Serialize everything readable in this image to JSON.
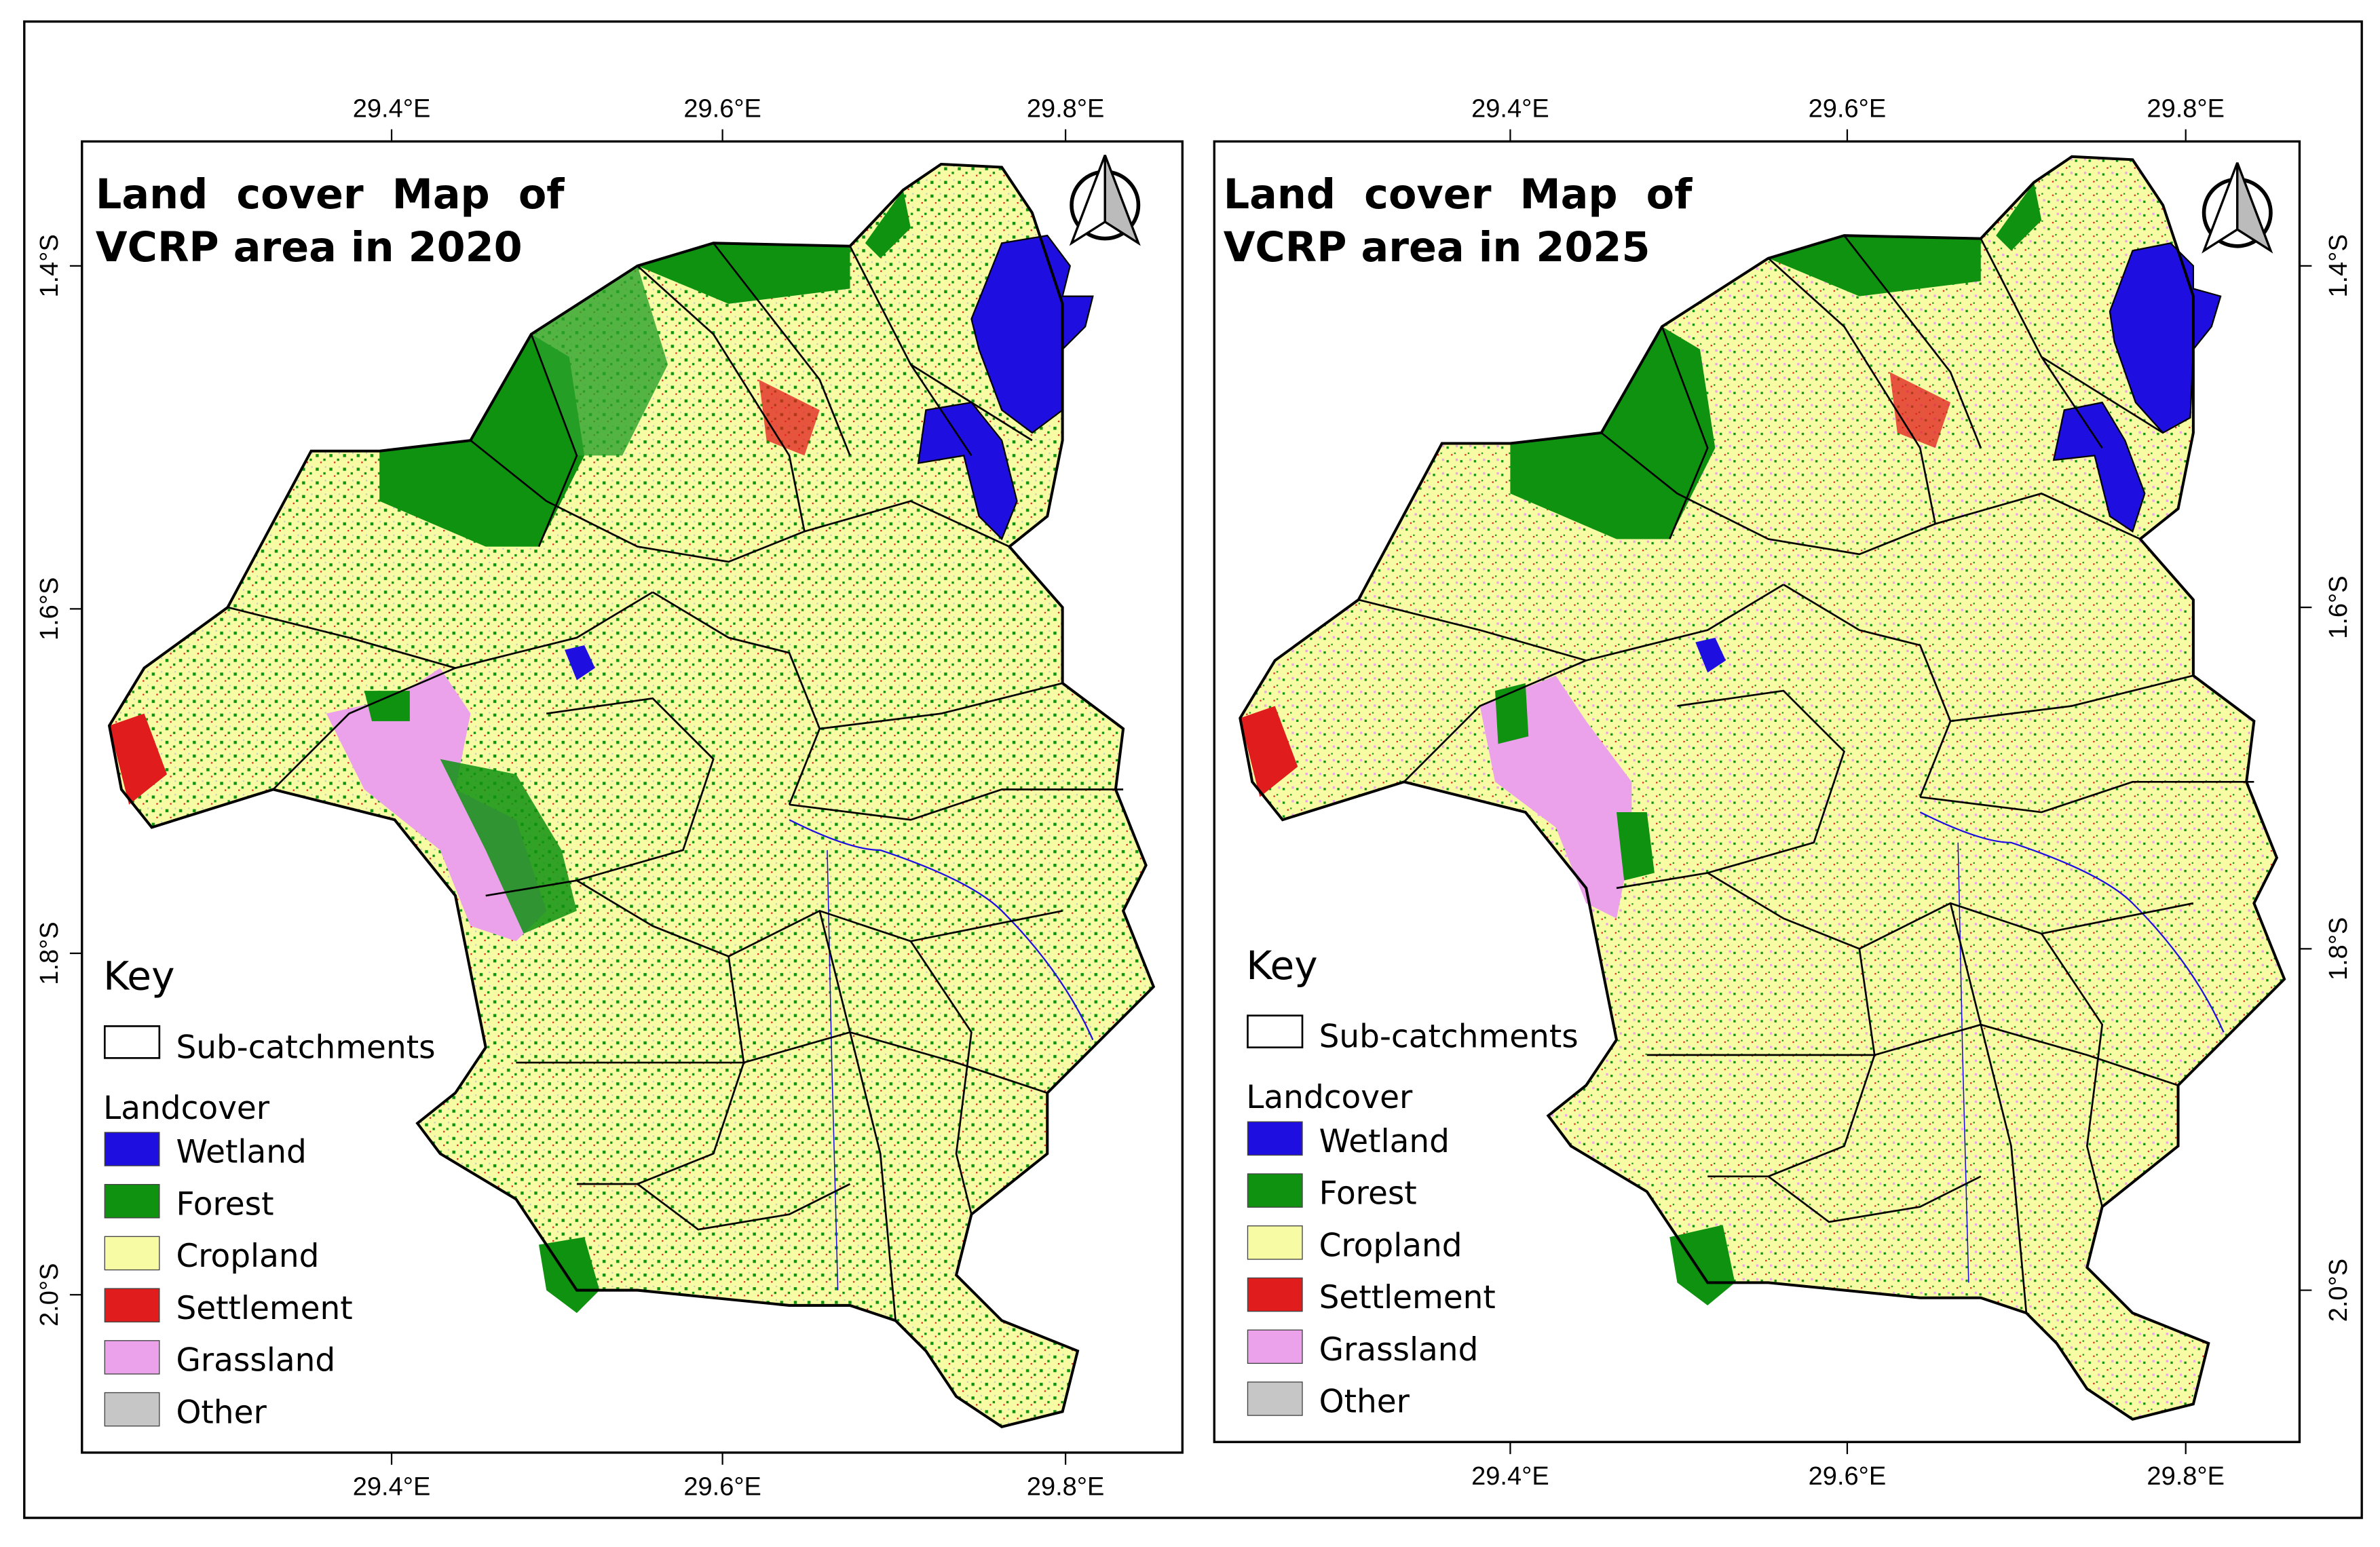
{
  "colors": {
    "wetland": "#1e0fe0",
    "forest": "#0e9210",
    "cropland": "#f7fca4",
    "settlement": "#e11c1c",
    "grassland": "#eba2ea",
    "other": "#c6c6c6"
  },
  "maps": [
    {
      "title_line1": "Land  cover  Map  of",
      "title_line2": "VCRP area in 2020",
      "lon_ticks": [
        "29.4°E",
        "29.6°E",
        "29.8°E"
      ],
      "lat_ticks": [
        "1.4°S",
        "1.6°S",
        "1.8°S",
        "2.0°S"
      ],
      "north_arrow_icon": "north-arrow-icon",
      "legend": {
        "heading": "Key",
        "boundary_label": "Sub-catchments",
        "group_label": "Landcover",
        "items": [
          "Wetland",
          "Forest",
          "Cropland",
          "Settlement",
          "Grassland",
          "Other"
        ]
      }
    },
    {
      "title_line1": "Land  cover  Map  of",
      "title_line2": "VCRP area in 2025",
      "lon_ticks": [
        "29.4°E",
        "29.6°E",
        "29.8°E"
      ],
      "lat_ticks": [
        "1.4°S",
        "1.6°S",
        "1.8°S",
        "2.0°S"
      ],
      "north_arrow_icon": "north-arrow-icon",
      "legend": {
        "heading": "Key",
        "boundary_label": "Sub-catchments",
        "group_label": "Landcover",
        "items": [
          "Wetland",
          "Forest",
          "Cropland",
          "Settlement",
          "Grassland",
          "Other"
        ]
      }
    }
  ]
}
